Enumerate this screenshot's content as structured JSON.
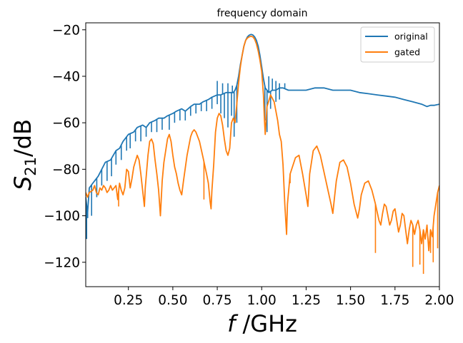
{
  "chart_data": {
    "type": "line",
    "title": "frequency domain",
    "xlabel_italic": "f",
    "xlabel_rest": " /GHz",
    "ylabel_main": "S",
    "ylabel_sub": "21",
    "ylabel_rest": "/dB",
    "xlim": [
      0.01,
      2.0
    ],
    "ylim": [
      -130.5,
      -17
    ],
    "xticks": [
      {
        "value": 0.25,
        "label": "0.25"
      },
      {
        "value": 0.5,
        "label": "0.50"
      },
      {
        "value": 0.75,
        "label": "0.75"
      },
      {
        "value": 1.0,
        "label": "1.00"
      },
      {
        "value": 1.25,
        "label": "1.25"
      },
      {
        "value": 1.5,
        "label": "1.50"
      },
      {
        "value": 1.75,
        "label": "1.75"
      },
      {
        "value": 2.0,
        "label": "2.00"
      }
    ],
    "yticks": [
      {
        "value": -20,
        "label": "−20"
      },
      {
        "value": -40,
        "label": "−40"
      },
      {
        "value": -60,
        "label": "−60"
      },
      {
        "value": -80,
        "label": "−80"
      },
      {
        "value": -100,
        "label": "−100"
      },
      {
        "value": -120,
        "label": "−120"
      }
    ],
    "legend_position": "upper-right",
    "series": [
      {
        "name": "original",
        "color": "#1f77b4",
        "points": [
          [
            0.01,
            -92
          ],
          [
            0.02,
            -99
          ],
          [
            0.03,
            -88
          ],
          [
            0.05,
            -86
          ],
          [
            0.08,
            -83
          ],
          [
            0.1,
            -80
          ],
          [
            0.12,
            -77
          ],
          [
            0.15,
            -76
          ],
          [
            0.18,
            -72
          ],
          [
            0.2,
            -71
          ],
          [
            0.22,
            -68
          ],
          [
            0.25,
            -65
          ],
          [
            0.28,
            -64
          ],
          [
            0.3,
            -62
          ],
          [
            0.33,
            -61
          ],
          [
            0.35,
            -62
          ],
          [
            0.37,
            -60
          ],
          [
            0.4,
            -59
          ],
          [
            0.42,
            -58
          ],
          [
            0.45,
            -58
          ],
          [
            0.47,
            -57
          ],
          [
            0.5,
            -56
          ],
          [
            0.52,
            -55
          ],
          [
            0.55,
            -54
          ],
          [
            0.57,
            -55
          ],
          [
            0.6,
            -53
          ],
          [
            0.62,
            -52
          ],
          [
            0.65,
            -52
          ],
          [
            0.67,
            -51
          ],
          [
            0.7,
            -50
          ],
          [
            0.72,
            -49
          ],
          [
            0.75,
            -48
          ],
          [
            0.77,
            -48
          ],
          [
            0.8,
            -47
          ],
          [
            0.82,
            -47
          ],
          [
            0.84,
            -47
          ],
          [
            0.85,
            -46
          ],
          [
            0.86,
            -44
          ],
          [
            0.87,
            -40
          ],
          [
            0.88,
            -35
          ],
          [
            0.89,
            -31
          ],
          [
            0.9,
            -27
          ],
          [
            0.91,
            -24.5
          ],
          [
            0.92,
            -23
          ],
          [
            0.93,
            -22.3
          ],
          [
            0.94,
            -22
          ],
          [
            0.95,
            -22.2
          ],
          [
            0.96,
            -23
          ],
          [
            0.97,
            -24.5
          ],
          [
            0.98,
            -27
          ],
          [
            0.99,
            -31
          ],
          [
            1.0,
            -36
          ],
          [
            1.01,
            -41
          ],
          [
            1.02,
            -45
          ],
          [
            1.04,
            -47
          ],
          [
            1.06,
            -46
          ],
          [
            1.08,
            -46
          ],
          [
            1.1,
            -45
          ],
          [
            1.12,
            -45
          ],
          [
            1.15,
            -46
          ],
          [
            1.2,
            -46
          ],
          [
            1.25,
            -46
          ],
          [
            1.3,
            -45
          ],
          [
            1.35,
            -45
          ],
          [
            1.4,
            -46
          ],
          [
            1.45,
            -46
          ],
          [
            1.5,
            -46
          ],
          [
            1.55,
            -47
          ],
          [
            1.6,
            -47.5
          ],
          [
            1.65,
            -48
          ],
          [
            1.7,
            -48.5
          ],
          [
            1.75,
            -49
          ],
          [
            1.8,
            -50
          ],
          [
            1.85,
            -51
          ],
          [
            1.9,
            -52
          ],
          [
            1.93,
            -53
          ],
          [
            1.95,
            -52.5
          ],
          [
            1.97,
            -52.5
          ],
          [
            2.0,
            -52
          ]
        ],
        "spikes": [
          [
            0.015,
            -110
          ],
          [
            0.021,
            -101
          ],
          [
            0.043,
            -100
          ],
          [
            0.072,
            -92
          ],
          [
            0.1,
            -87
          ],
          [
            0.13,
            -85
          ],
          [
            0.155,
            -83
          ],
          [
            0.18,
            -78
          ],
          [
            0.21,
            -76
          ],
          [
            0.24,
            -72
          ],
          [
            0.26,
            -71
          ],
          [
            0.29,
            -68
          ],
          [
            0.32,
            -68
          ],
          [
            0.35,
            -66
          ],
          [
            0.38,
            -64
          ],
          [
            0.41,
            -64
          ],
          [
            0.44,
            -63
          ],
          [
            0.48,
            -63
          ],
          [
            0.51,
            -60
          ],
          [
            0.54,
            -59
          ],
          [
            0.57,
            -59
          ],
          [
            0.6,
            -57
          ],
          [
            0.63,
            -56
          ],
          [
            0.66,
            -55
          ],
          [
            0.69,
            -55
          ],
          [
            0.72,
            -54
          ],
          [
            0.75,
            -52
          ],
          [
            0.77,
            -56
          ],
          [
            0.79,
            -58
          ],
          [
            0.81,
            -62
          ],
          [
            0.83,
            -57
          ],
          [
            0.845,
            -66
          ],
          [
            0.86,
            -60
          ],
          [
            1.018,
            -59
          ],
          [
            1.03,
            -64
          ],
          [
            1.05,
            -54
          ],
          [
            1.08,
            -51
          ],
          [
            1.1,
            -50
          ]
        ],
        "upper_spikes": [
          [
            0.75,
            -42
          ],
          [
            0.78,
            -43
          ],
          [
            0.81,
            -43
          ],
          [
            0.835,
            -44
          ],
          [
            1.04,
            -40
          ],
          [
            1.06,
            -41
          ],
          [
            1.08,
            -42
          ],
          [
            1.1,
            -43
          ],
          [
            1.13,
            -43
          ]
        ]
      },
      {
        "name": "gated",
        "color": "#ff7f0e",
        "points": [
          [
            0.01,
            -90
          ],
          [
            0.02,
            -92
          ],
          [
            0.03,
            -90
          ],
          [
            0.05,
            -89
          ],
          [
            0.06,
            -87
          ],
          [
            0.07,
            -90
          ],
          [
            0.08,
            -91
          ],
          [
            0.09,
            -88
          ],
          [
            0.1,
            -89
          ],
          [
            0.11,
            -87
          ],
          [
            0.12,
            -88
          ],
          [
            0.13,
            -90
          ],
          [
            0.14,
            -89
          ],
          [
            0.15,
            -87
          ],
          [
            0.16,
            -89
          ],
          [
            0.17,
            -88
          ],
          [
            0.18,
            -87
          ],
          [
            0.19,
            -93
          ],
          [
            0.2,
            -86
          ],
          [
            0.21,
            -89
          ],
          [
            0.22,
            -91
          ],
          [
            0.23,
            -88
          ],
          [
            0.24,
            -80
          ],
          [
            0.25,
            -81
          ],
          [
            0.26,
            -88
          ],
          [
            0.27,
            -84
          ],
          [
            0.28,
            -79
          ],
          [
            0.3,
            -74
          ],
          [
            0.31,
            -76
          ],
          [
            0.32,
            -82
          ],
          [
            0.33,
            -89
          ],
          [
            0.34,
            -96
          ],
          [
            0.345,
            -88
          ],
          [
            0.36,
            -74
          ],
          [
            0.37,
            -68
          ],
          [
            0.38,
            -67
          ],
          [
            0.39,
            -69
          ],
          [
            0.4,
            -76
          ],
          [
            0.41,
            -82
          ],
          [
            0.42,
            -89
          ],
          [
            0.43,
            -100
          ],
          [
            0.44,
            -85
          ],
          [
            0.45,
            -77
          ],
          [
            0.47,
            -67
          ],
          [
            0.48,
            -65
          ],
          [
            0.49,
            -68
          ],
          [
            0.5,
            -74
          ],
          [
            0.51,
            -79
          ],
          [
            0.52,
            -82
          ],
          [
            0.53,
            -86
          ],
          [
            0.54,
            -89
          ],
          [
            0.55,
            -91
          ],
          [
            0.56,
            -85
          ],
          [
            0.58,
            -74
          ],
          [
            0.6,
            -66
          ],
          [
            0.61,
            -64
          ],
          [
            0.62,
            -63
          ],
          [
            0.63,
            -64
          ],
          [
            0.65,
            -68
          ],
          [
            0.67,
            -75
          ],
          [
            0.69,
            -82
          ],
          [
            0.7,
            -86
          ],
          [
            0.71,
            -94
          ],
          [
            0.715,
            -97
          ],
          [
            0.72,
            -89
          ],
          [
            0.73,
            -78
          ],
          [
            0.74,
            -64
          ],
          [
            0.75,
            -58
          ],
          [
            0.76,
            -56
          ],
          [
            0.77,
            -57
          ],
          [
            0.78,
            -61
          ],
          [
            0.79,
            -67
          ],
          [
            0.8,
            -72
          ],
          [
            0.81,
            -74
          ],
          [
            0.82,
            -71
          ],
          [
            0.83,
            -60
          ],
          [
            0.84,
            -58
          ],
          [
            0.85,
            -60
          ],
          [
            0.86,
            -52
          ],
          [
            0.87,
            -43
          ],
          [
            0.88,
            -36
          ],
          [
            0.89,
            -31
          ],
          [
            0.9,
            -27
          ],
          [
            0.91,
            -24.5
          ],
          [
            0.92,
            -23.5
          ],
          [
            0.93,
            -23
          ],
          [
            0.94,
            -22.8
          ],
          [
            0.95,
            -23
          ],
          [
            0.96,
            -24
          ],
          [
            0.97,
            -26
          ],
          [
            0.98,
            -29
          ],
          [
            0.99,
            -33
          ],
          [
            1.0,
            -38
          ],
          [
            1.01,
            -48
          ],
          [
            1.015,
            -58
          ],
          [
            1.02,
            -65
          ],
          [
            1.03,
            -53
          ],
          [
            1.05,
            -48
          ],
          [
            1.07,
            -51
          ],
          [
            1.09,
            -59
          ],
          [
            1.1,
            -65
          ],
          [
            1.11,
            -68
          ],
          [
            1.12,
            -78
          ],
          [
            1.13,
            -95
          ],
          [
            1.14,
            -108
          ],
          [
            1.145,
            -95
          ],
          [
            1.16,
            -82
          ],
          [
            1.19,
            -75
          ],
          [
            1.21,
            -74
          ],
          [
            1.23,
            -82
          ],
          [
            1.25,
            -91
          ],
          [
            1.26,
            -96
          ],
          [
            1.265,
            -89
          ],
          [
            1.27,
            -82
          ],
          [
            1.29,
            -72
          ],
          [
            1.31,
            -70
          ],
          [
            1.33,
            -74
          ],
          [
            1.35,
            -81
          ],
          [
            1.37,
            -88
          ],
          [
            1.39,
            -95
          ],
          [
            1.4,
            -99
          ],
          [
            1.41,
            -92
          ],
          [
            1.42,
            -85
          ],
          [
            1.44,
            -77
          ],
          [
            1.46,
            -76
          ],
          [
            1.48,
            -79
          ],
          [
            1.5,
            -86
          ],
          [
            1.52,
            -95
          ],
          [
            1.54,
            -101
          ],
          [
            1.55,
            -97
          ],
          [
            1.56,
            -91
          ],
          [
            1.58,
            -86
          ],
          [
            1.6,
            -85
          ],
          [
            1.62,
            -89
          ],
          [
            1.64,
            -95
          ],
          [
            1.66,
            -102
          ],
          [
            1.67,
            -104
          ],
          [
            1.68,
            -99
          ],
          [
            1.69,
            -95
          ],
          [
            1.7,
            -96
          ],
          [
            1.71,
            -100
          ],
          [
            1.72,
            -104
          ],
          [
            1.73,
            -102
          ],
          [
            1.74,
            -98
          ],
          [
            1.75,
            -97
          ],
          [
            1.76,
            -102
          ],
          [
            1.77,
            -107
          ],
          [
            1.78,
            -104
          ],
          [
            1.79,
            -99
          ],
          [
            1.8,
            -100
          ],
          [
            1.81,
            -106
          ],
          [
            1.82,
            -112
          ],
          [
            1.83,
            -106
          ],
          [
            1.84,
            -102
          ],
          [
            1.85,
            -104
          ],
          [
            1.86,
            -108
          ],
          [
            1.87,
            -104
          ],
          [
            1.88,
            -102
          ],
          [
            1.89,
            -106
          ],
          [
            1.9,
            -112
          ],
          [
            1.91,
            -106
          ],
          [
            1.92,
            -110
          ],
          [
            1.93,
            -104
          ],
          [
            1.94,
            -115
          ],
          [
            1.95,
            -106
          ],
          [
            1.96,
            -109
          ],
          [
            1.97,
            -100
          ],
          [
            1.98,
            -95
          ],
          [
            1.99,
            -90
          ],
          [
            2.0,
            -87
          ]
        ],
        "spikes": [
          [
            0.195,
            -96
          ],
          [
            0.675,
            -93
          ],
          [
            1.16,
            -86
          ],
          [
            1.64,
            -116
          ],
          [
            1.85,
            -122
          ],
          [
            1.89,
            -121
          ],
          [
            1.91,
            -125
          ],
          [
            1.95,
            -116
          ],
          [
            1.965,
            -120
          ],
          [
            1.99,
            -114
          ]
        ]
      }
    ]
  }
}
